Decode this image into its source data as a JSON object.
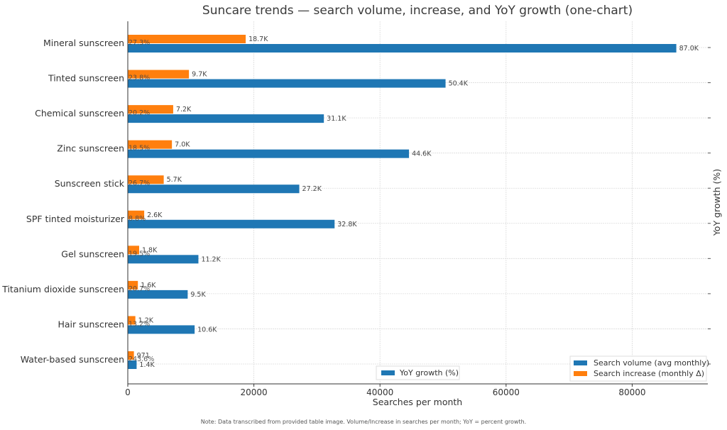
{
  "chart_data": {
    "type": "bar",
    "orientation": "horizontal",
    "title": "Suncare trends — search volume, increase, and YoY growth (one-chart)",
    "xlabel": "Searches per month",
    "ylabel_right": "YoY growth (%)",
    "xlim": [
      0,
      92000
    ],
    "xticks": [
      0,
      20000,
      40000,
      60000,
      80000
    ],
    "xtick_labels": [
      "0",
      "20000",
      "40000",
      "60000",
      "80000"
    ],
    "grid": true,
    "categories": [
      "Mineral sunscreen",
      "Tinted sunscreen",
      "Chemical sunscreen",
      "Zinc sunscreen",
      "Sunscreen stick",
      "SPF tinted moisturizer",
      "Gel sunscreen",
      "Titanium dioxide sunscreen",
      "Hair sunscreen",
      "Water-based sunscreen"
    ],
    "series": [
      {
        "name": "Search volume (avg monthly)",
        "color": "#1f77b4",
        "values": [
          87000,
          50400,
          31100,
          44600,
          27200,
          32800,
          11200,
          9500,
          10600,
          1400
        ],
        "labels": [
          "87.0K",
          "50.4K",
          "31.1K",
          "44.6K",
          "27.2K",
          "32.8K",
          "11.2K",
          "9.5K",
          "10.6K",
          "1.4K"
        ]
      },
      {
        "name": "Search increase (monthly Δ)",
        "color": "#ff7f0e",
        "values": [
          18700,
          9700,
          7200,
          7000,
          5700,
          2600,
          1800,
          1600,
          1200,
          971
        ],
        "labels": [
          "18.7K",
          "9.7K",
          "7.2K",
          "7.0K",
          "5.7K",
          "2.6K",
          "1.8K",
          "1.6K",
          "1.2K",
          "971"
        ]
      },
      {
        "name": "YoY growth (%)",
        "color": "#1f77b4",
        "values": [
          27.3,
          23.8,
          20.2,
          18.5,
          26.7,
          8.8,
          19.5,
          20.7,
          13.2,
          243.6
        ],
        "labels": [
          "27.3%",
          "23.8%",
          "20.2%",
          "18.5%",
          "26.7%",
          "8.8%",
          "19.5%",
          "20.7%",
          "13.2%",
          "243.6%"
        ]
      }
    ],
    "legends": [
      {
        "placement": "bottom-right",
        "entries": [
          "Search volume (avg monthly)",
          "Search increase (monthly Δ)"
        ]
      },
      {
        "placement": "bottom-center",
        "entries": [
          "YoY growth (%)"
        ]
      }
    ],
    "note": "Note: Data transcribed from provided table image. Volume/Increase in searches per month; YoY = percent growth."
  }
}
